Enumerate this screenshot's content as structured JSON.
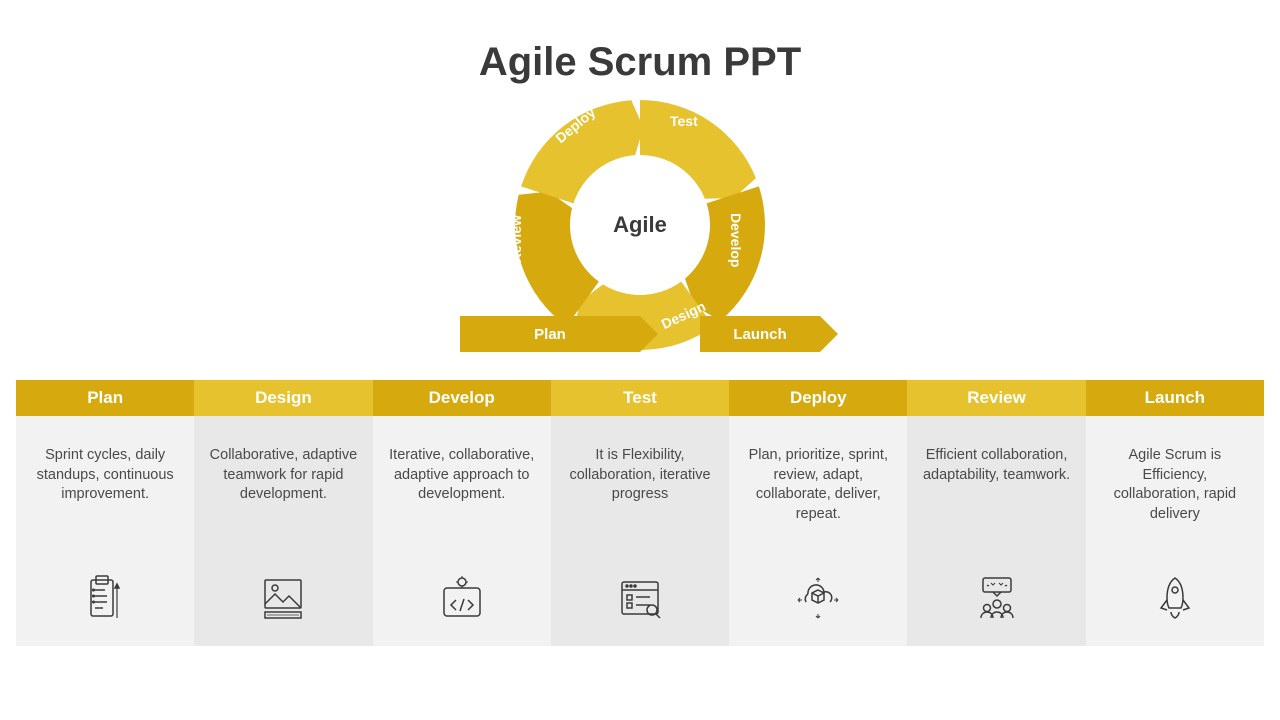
{
  "title": "Agile Scrum PPT",
  "cycle": {
    "center_label": "Agile",
    "segments": [
      {
        "label": "Test",
        "color": "#e5c22e"
      },
      {
        "label": "Develop",
        "color": "#d6a90f"
      },
      {
        "label": "Design",
        "color": "#e5c22e"
      },
      {
        "label": "Review",
        "color": "#d6a90f"
      },
      {
        "label": "Deploy",
        "color": "#e5c22e"
      }
    ],
    "flow_plan": {
      "label": "Plan",
      "color": "#d6a90f"
    },
    "flow_launch": {
      "label": "Launch",
      "color": "#d6a90f"
    },
    "ring_outer_r": 125,
    "ring_inner_r": 70
  },
  "columns": [
    {
      "title": "Plan",
      "desc": "Sprint cycles, daily standups, continuous improvement.",
      "header_color": "#d6a90f",
      "body_color": "#f2f2f2",
      "icon": "clipboard"
    },
    {
      "title": "Design",
      "desc": "Collaborative, adaptive teamwork for rapid development.",
      "header_color": "#e5c22e",
      "body_color": "#e8e8e8",
      "icon": "design"
    },
    {
      "title": "Develop",
      "desc": "Iterative, collaborative, adaptive approach to development.",
      "header_color": "#d6a90f",
      "body_color": "#f2f2f2",
      "icon": "code"
    },
    {
      "title": "Test",
      "desc": "It is Flexibility, collaboration, iterative progress",
      "header_color": "#e5c22e",
      "body_color": "#e8e8e8",
      "icon": "browser"
    },
    {
      "title": "Deploy",
      "desc": "Plan, prioritize, sprint, review, adapt, collaborate, deliver, repeat.",
      "header_color": "#d6a90f",
      "body_color": "#f2f2f2",
      "icon": "cloudbox"
    },
    {
      "title": "Review",
      "desc": "Efficient collaboration, adaptability, teamwork.",
      "header_color": "#e5c22e",
      "body_color": "#e8e8e8",
      "icon": "team"
    },
    {
      "title": "Launch",
      "desc": "Agile Scrum is Efficiency, collaboration, rapid delivery",
      "header_color": "#d6a90f",
      "body_color": "#f2f2f2",
      "icon": "rocket"
    }
  ],
  "typography": {
    "title_fontsize": 40,
    "title_color": "#3a3a3a",
    "col_title_fontsize": 17,
    "col_desc_fontsize": 14.5,
    "col_desc_color": "#4a4a4a"
  },
  "background_color": "#ffffff"
}
